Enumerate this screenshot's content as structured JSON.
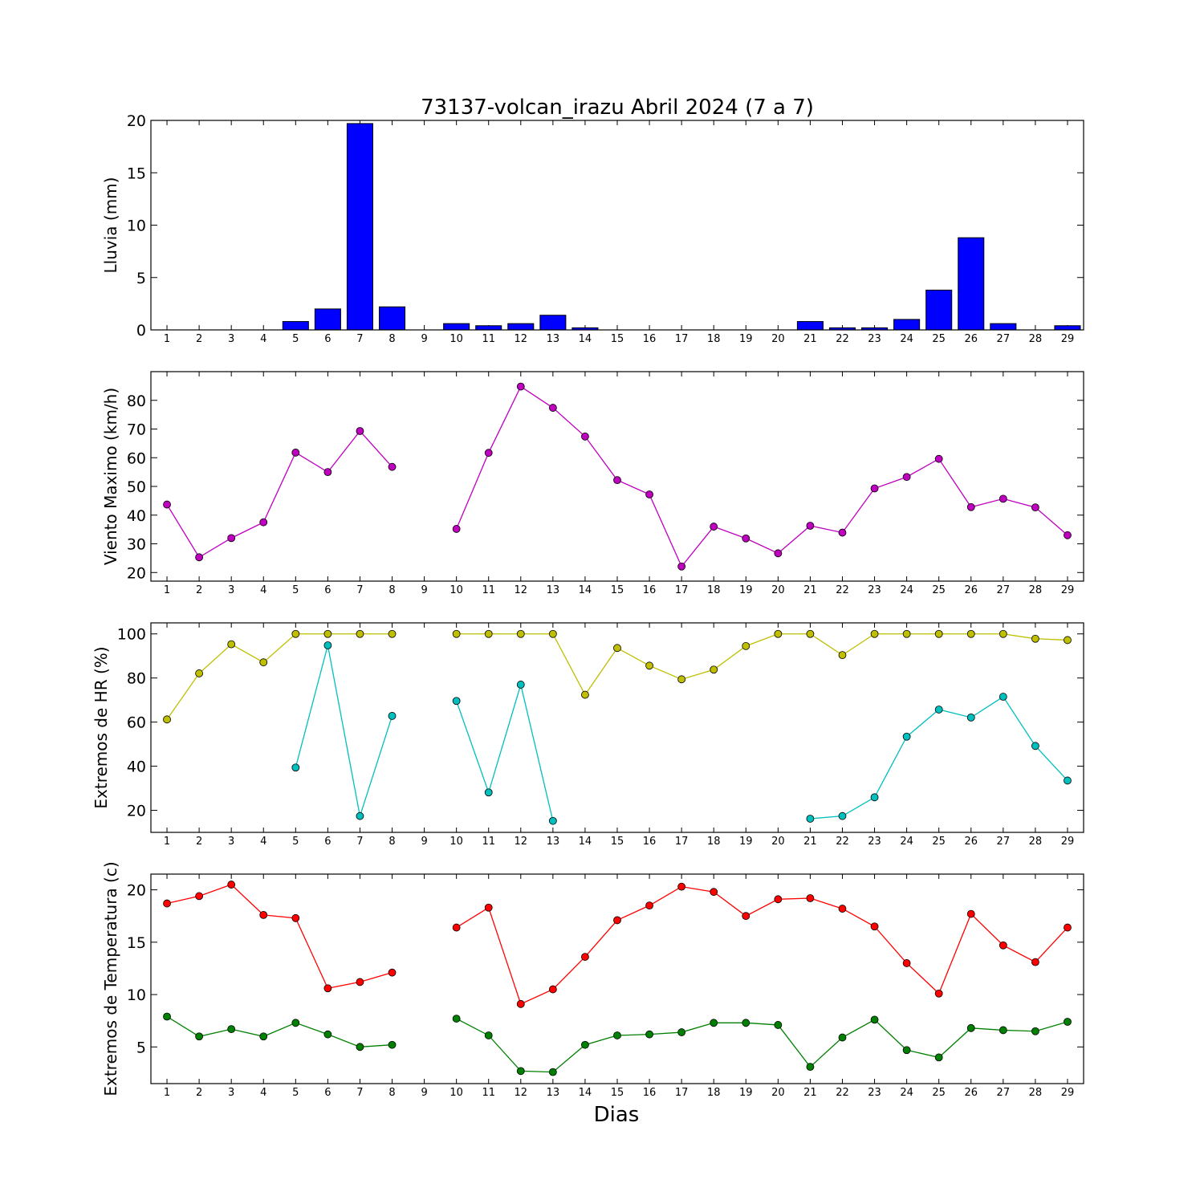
{
  "chart_data": [
    {
      "type": "bar",
      "title": "73137-volcan_irazu Abril 2024  (7 a 7)",
      "ylabel": "Lluvia (mm)",
      "xlabel": "",
      "categories": [
        "1",
        "2",
        "3",
        "4",
        "5",
        "6",
        "7",
        "8",
        "9",
        "10",
        "11",
        "12",
        "13",
        "14",
        "15",
        "16",
        "17",
        "18",
        "19",
        "20",
        "21",
        "22",
        "23",
        "24",
        "25",
        "26",
        "27",
        "28",
        "29"
      ],
      "ylim": [
        0,
        20
      ],
      "yticks": [
        0,
        5,
        10,
        15,
        20
      ],
      "series": [
        {
          "values": [
            0,
            0,
            0,
            0,
            0.8,
            2.0,
            19.7,
            2.2,
            0,
            0.6,
            0.4,
            0.6,
            1.4,
            0.2,
            0,
            0,
            0,
            0,
            0,
            0,
            0.8,
            0.2,
            0.2,
            1.0,
            3.8,
            8.8,
            0.6,
            0,
            0.4
          ],
          "color": "#0000ff"
        }
      ],
      "grid": false
    },
    {
      "type": "line",
      "title": "",
      "ylabel": "Viento Maximo (km/h)",
      "xlabel": "",
      "categories": [
        "1",
        "2",
        "3",
        "4",
        "5",
        "6",
        "7",
        "8",
        "9",
        "10",
        "11",
        "12",
        "13",
        "14",
        "15",
        "16",
        "17",
        "18",
        "19",
        "20",
        "21",
        "22",
        "23",
        "24",
        "25",
        "26",
        "27",
        "28",
        "29"
      ],
      "ylim": [
        17,
        90
      ],
      "yticks": [
        20,
        30,
        40,
        50,
        60,
        70,
        80
      ],
      "series": [
        {
          "values": [
            43.7,
            25.3,
            32,
            37.5,
            61.8,
            55,
            69.3,
            56.8,
            null,
            35.2,
            61.7,
            84.8,
            77.4,
            67.4,
            52.2,
            47.2,
            22.1,
            36,
            31.9,
            26.7,
            36.3,
            33.9,
            49.3,
            53.3,
            59.6,
            42.8,
            45.7,
            42.7,
            33
          ],
          "color": "#bf00bf"
        }
      ],
      "grid": false
    },
    {
      "type": "line",
      "title": "",
      "ylabel": "Extremos de HR (%)",
      "xlabel": "",
      "categories": [
        "1",
        "2",
        "3",
        "4",
        "5",
        "6",
        "7",
        "8",
        "9",
        "10",
        "11",
        "12",
        "13",
        "14",
        "15",
        "16",
        "17",
        "18",
        "19",
        "20",
        "21",
        "22",
        "23",
        "24",
        "25",
        "26",
        "27",
        "28",
        "29"
      ],
      "ylim": [
        10,
        105
      ],
      "yticks": [
        20,
        40,
        60,
        80,
        100
      ],
      "series": [
        {
          "values": [
            61.2,
            82.1,
            95.3,
            87.1,
            100,
            100,
            100,
            100,
            null,
            100,
            100,
            100,
            100,
            72.4,
            93.6,
            85.6,
            79.4,
            83.8,
            94.5,
            100,
            100,
            90.4,
            100,
            100,
            100,
            100,
            100,
            97.8,
            97.2
          ],
          "color": "#bfbf00"
        },
        {
          "values": [
            null,
            null,
            null,
            null,
            39.4,
            94.8,
            17.4,
            62.8,
            null,
            69.6,
            28.1,
            77,
            15.2,
            null,
            null,
            null,
            null,
            null,
            null,
            null,
            16.2,
            17.4,
            25.9,
            53.4,
            65.7,
            62.1,
            71.5,
            49.2,
            33.5
          ],
          "color": "#00bfbf"
        }
      ],
      "grid": false
    },
    {
      "type": "line",
      "title": "",
      "ylabel": "Extremos de Temperatura (c)",
      "xlabel": "Dias",
      "categories": [
        "1",
        "2",
        "3",
        "4",
        "5",
        "6",
        "7",
        "8",
        "9",
        "10",
        "11",
        "12",
        "13",
        "14",
        "15",
        "16",
        "17",
        "18",
        "19",
        "20",
        "21",
        "22",
        "23",
        "24",
        "25",
        "26",
        "27",
        "28",
        "29"
      ],
      "ylim": [
        1.5,
        21.5
      ],
      "yticks": [
        5,
        10,
        15,
        20
      ],
      "series": [
        {
          "values": [
            18.7,
            19.4,
            20.5,
            17.6,
            17.3,
            10.6,
            11.2,
            12.1,
            null,
            16.4,
            18.3,
            9.1,
            10.5,
            13.6,
            17.1,
            18.5,
            20.3,
            19.8,
            17.5,
            19.1,
            19.2,
            18.2,
            16.5,
            13,
            10.1,
            17.7,
            14.7,
            13.1,
            16.4
          ],
          "color": "#ff0000"
        },
        {
          "values": [
            7.9,
            6,
            6.7,
            6,
            7.3,
            6.2,
            5,
            5.2,
            null,
            7.7,
            6.1,
            2.7,
            2.6,
            5.2,
            6.1,
            6.2,
            6.4,
            7.3,
            7.3,
            7.1,
            3.1,
            5.9,
            7.6,
            4.7,
            4,
            6.8,
            6.6,
            6.5,
            7.4
          ],
          "color": "#008000"
        }
      ],
      "grid": false
    }
  ]
}
